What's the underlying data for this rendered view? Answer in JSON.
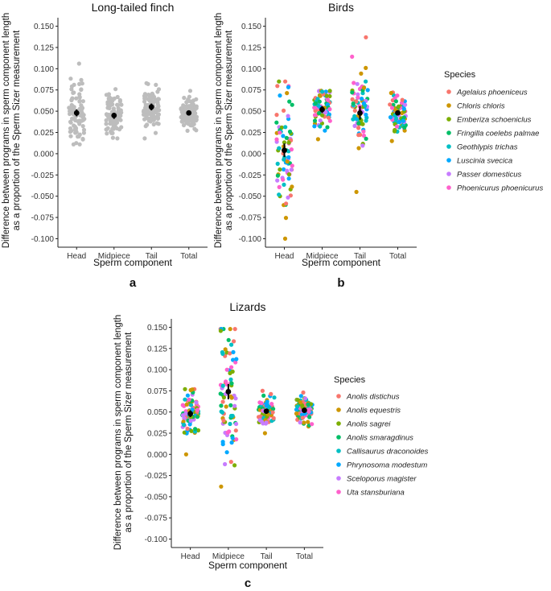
{
  "chart_data": [
    {
      "type": "scatter",
      "panel_label": "a",
      "title": "Long-tailed finch",
      "xlabel": "Sperm component",
      "ylabel_line1": "Difference between programs in sperm component length",
      "ylabel_line2": "as a proportion of the Sperm Sizer measurement",
      "ylim": [
        -0.11,
        0.16
      ],
      "yticks": [
        "0.150",
        "0.125",
        "0.100",
        "0.075",
        "0.050",
        "0.025",
        "0.000",
        "-0.025",
        "-0.050",
        "-0.075",
        "-0.100"
      ],
      "categories": [
        "Head",
        "Midpiece",
        "Tail",
        "Total"
      ],
      "point_color": "#bdbdbd",
      "groups": [
        {
          "category": "Head",
          "mean": 0.048,
          "ci": [
            0.044,
            0.052
          ],
          "range": [
            0.011,
            0.106
          ],
          "center": 0.047,
          "spread": 0.017,
          "n": 90
        },
        {
          "category": "Midpiece",
          "mean": 0.045,
          "ci": [
            0.041,
            0.048
          ],
          "range": [
            0.018,
            0.076
          ],
          "center": 0.045,
          "spread": 0.012,
          "n": 90
        },
        {
          "category": "Tail",
          "mean": 0.055,
          "ci": [
            0.051,
            0.059
          ],
          "range": [
            0.018,
            0.083
          ],
          "center": 0.054,
          "spread": 0.013,
          "n": 90
        },
        {
          "category": "Total",
          "mean": 0.048,
          "ci": [
            0.046,
            0.051
          ],
          "range": [
            0.027,
            0.074
          ],
          "center": 0.048,
          "spread": 0.009,
          "n": 90
        }
      ]
    },
    {
      "type": "scatter",
      "panel_label": "b",
      "title": "Birds",
      "xlabel": "Sperm component",
      "ylabel_line1": "Difference between programs in sperm component length",
      "ylabel_line2": "as a proportion of the Sperm Sizer measurement",
      "ylim": [
        -0.11,
        0.16
      ],
      "yticks": [
        "0.150",
        "0.125",
        "0.100",
        "0.075",
        "0.050",
        "0.025",
        "0.000",
        "-0.025",
        "-0.050",
        "-0.075",
        "-0.100"
      ],
      "categories": [
        "Head",
        "Midpiece",
        "Tail",
        "Total"
      ],
      "legend_title": "Species",
      "species": [
        {
          "name": "Agelaius phoeniceus",
          "color": "#f8766d"
        },
        {
          "name": "Chloris chloris",
          "color": "#cd9600"
        },
        {
          "name": "Emberiza schoeniclus",
          "color": "#7cae00"
        },
        {
          "name": "Fringilla coelebs palmae",
          "color": "#00be67"
        },
        {
          "name": "Geothlypis trichas",
          "color": "#00bfc4"
        },
        {
          "name": "Luscinia svecica",
          "color": "#00a9ff"
        },
        {
          "name": "Passer domesticus",
          "color": "#c77cff"
        },
        {
          "name": "Phoenicurus phoenicurus",
          "color": "#ff61cc"
        }
      ],
      "groups": [
        {
          "category": "Head",
          "mean": 0.004,
          "ci": [
            -0.004,
            0.012
          ],
          "range": [
            -0.1,
            0.085
          ],
          "center": 0.005,
          "spread": 0.035,
          "n": 80
        },
        {
          "category": "Midpiece",
          "mean": 0.052,
          "ci": [
            0.048,
            0.056
          ],
          "range": [
            0.017,
            0.074
          ],
          "center": 0.052,
          "spread": 0.013,
          "n": 80
        },
        {
          "category": "Tail",
          "mean": 0.048,
          "ci": [
            0.04,
            0.056
          ],
          "range": [
            -0.045,
            0.137
          ],
          "center": 0.05,
          "spread": 0.022,
          "n": 80
        },
        {
          "category": "Total",
          "mean": 0.048,
          "ci": [
            0.045,
            0.051
          ],
          "range": [
            0.015,
            0.072
          ],
          "center": 0.047,
          "spread": 0.011,
          "n": 80
        }
      ]
    },
    {
      "type": "scatter",
      "panel_label": "c",
      "title": "Lizards",
      "xlabel": "Sperm component",
      "ylabel_line1": "Difference between programs in sperm component length",
      "ylabel_line2": "as a proportion of the Sperm Sizer measurement",
      "ylim": [
        -0.11,
        0.16
      ],
      "yticks": [
        "0.150",
        "0.125",
        "0.100",
        "0.075",
        "0.050",
        "0.025",
        "0.000",
        "-0.025",
        "-0.050",
        "-0.075",
        "-0.100"
      ],
      "categories": [
        "Head",
        "Midpiece",
        "Tail",
        "Total"
      ],
      "legend_title": "Species",
      "species": [
        {
          "name": "Anolis distichus",
          "color": "#f8766d"
        },
        {
          "name": "Anolis equestris",
          "color": "#cd9600"
        },
        {
          "name": "Anolis sagrei",
          "color": "#7cae00"
        },
        {
          "name": "Anolis smaragdinus",
          "color": "#00be67"
        },
        {
          "name": "Callisaurus draconoides",
          "color": "#00bfc4"
        },
        {
          "name": "Phrynosoma modestum",
          "color": "#00a9ff"
        },
        {
          "name": "Sceloporus magister",
          "color": "#c77cff"
        },
        {
          "name": "Uta stansburiana",
          "color": "#ff61cc"
        }
      ],
      "groups": [
        {
          "category": "Head",
          "mean": 0.048,
          "ci": [
            0.044,
            0.052
          ],
          "range": [
            0.0,
            0.077
          ],
          "center": 0.048,
          "spread": 0.013,
          "n": 80
        },
        {
          "category": "Midpiece",
          "mean": 0.074,
          "ci": [
            0.065,
            0.083
          ],
          "range": [
            -0.038,
            0.148
          ],
          "center": 0.075,
          "spread": 0.035,
          "n": 80
        },
        {
          "category": "Tail",
          "mean": 0.051,
          "ci": [
            0.048,
            0.054
          ],
          "range": [
            0.025,
            0.075
          ],
          "center": 0.051,
          "spread": 0.009,
          "n": 80
        },
        {
          "category": "Total",
          "mean": 0.052,
          "ci": [
            0.05,
            0.055
          ],
          "range": [
            0.033,
            0.073
          ],
          "center": 0.052,
          "spread": 0.008,
          "n": 80
        }
      ]
    }
  ]
}
